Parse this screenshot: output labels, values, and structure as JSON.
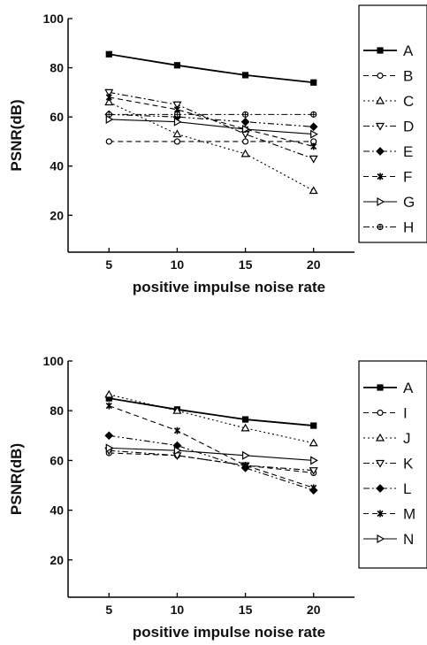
{
  "chart_data": [
    {
      "type": "line",
      "title": "",
      "xlabel": "positive impulse noise rate",
      "ylabel": "PSNR(dB)",
      "x": [
        5,
        10,
        15,
        20
      ],
      "xlim": [
        2,
        23
      ],
      "ylim": [
        5,
        100
      ],
      "xticks": [
        5,
        10,
        15,
        20
      ],
      "yticks": [
        20,
        40,
        60,
        80,
        100
      ],
      "grid": false,
      "legend": "right",
      "series": [
        {
          "name": "A",
          "values": [
            85.5,
            81,
            77,
            74
          ],
          "marker": "filled-square",
          "dash": "solid",
          "color": "#000000"
        },
        {
          "name": "B",
          "values": [
            50,
            50,
            50,
            50
          ],
          "marker": "circle",
          "dash": "dashed",
          "color": "#000000"
        },
        {
          "name": "C",
          "values": [
            66,
            53,
            45,
            30
          ],
          "marker": "triangle-up",
          "dash": "dotted",
          "color": "#000000"
        },
        {
          "name": "D",
          "values": [
            70,
            65,
            53,
            43
          ],
          "marker": "triangle-down",
          "dash": "dashdot",
          "color": "#000000"
        },
        {
          "name": "E",
          "values": [
            61,
            60,
            58,
            56
          ],
          "marker": "filled-diamond",
          "dash": "dashdotdot",
          "color": "#000000"
        },
        {
          "name": "F",
          "values": [
            68,
            63,
            55,
            48
          ],
          "marker": "star",
          "dash": "dashed",
          "color": "#000000"
        },
        {
          "name": "G",
          "values": [
            59,
            58,
            55,
            53
          ],
          "marker": "triangle-right",
          "dash": "solid-thin",
          "color": "#000000"
        },
        {
          "name": "H",
          "values": [
            61,
            61,
            61,
            61
          ],
          "marker": "circle-plus",
          "dash": "dashdot",
          "color": "#000000"
        }
      ]
    },
    {
      "type": "line",
      "title": "",
      "xlabel": "positive impulse noise rate",
      "ylabel": "PSNR(dB)",
      "x": [
        5,
        10,
        15,
        20
      ],
      "xlim": [
        2,
        23
      ],
      "ylim": [
        5,
        100
      ],
      "xticks": [
        5,
        10,
        15,
        20
      ],
      "yticks": [
        20,
        40,
        60,
        80,
        100
      ],
      "grid": false,
      "legend": "right",
      "series": [
        {
          "name": "A",
          "values": [
            85,
            80.5,
            76.5,
            74
          ],
          "marker": "filled-square",
          "dash": "solid",
          "color": "#000000"
        },
        {
          "name": "I",
          "values": [
            63,
            62,
            58,
            55
          ],
          "marker": "circle",
          "dash": "dashed",
          "color": "#000000"
        },
        {
          "name": "J",
          "values": [
            86.5,
            80,
            73,
            67
          ],
          "marker": "triangle-up",
          "dash": "dotted",
          "color": "#000000"
        },
        {
          "name": "K",
          "values": [
            64,
            62,
            58,
            56
          ],
          "marker": "triangle-down",
          "dash": "dashdot",
          "color": "#000000"
        },
        {
          "name": "L",
          "values": [
            70,
            66,
            57,
            48
          ],
          "marker": "filled-diamond",
          "dash": "dashdotdot",
          "color": "#000000"
        },
        {
          "name": "M",
          "values": [
            82,
            72,
            58,
            49
          ],
          "marker": "star",
          "dash": "dashed",
          "color": "#000000"
        },
        {
          "name": "N",
          "values": [
            65,
            64,
            62,
            60
          ],
          "marker": "triangle-right",
          "dash": "solid-thin",
          "color": "#000000"
        }
      ]
    }
  ]
}
